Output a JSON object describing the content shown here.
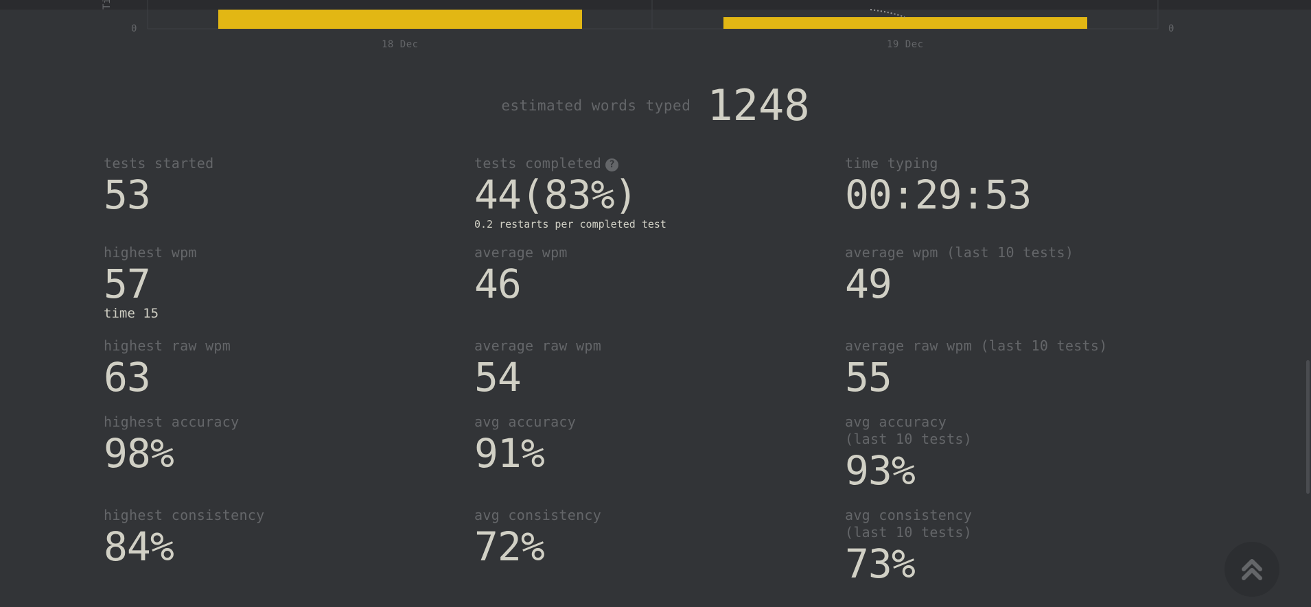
{
  "chart_data": {
    "type": "bar",
    "categories": [
      "18 Dec",
      "19 Dec"
    ],
    "y_tick_left": "0",
    "y_tick_right": "0",
    "ylabel_fragment": "Tin",
    "bar_color": "#e2b714",
    "grid": true
  },
  "words_typed": {
    "label": "estimated words typed",
    "value": "1248"
  },
  "stats": {
    "tests_started": {
      "label": "tests started",
      "value": "53"
    },
    "tests_completed": {
      "label": "tests completed",
      "value": "44(83%)",
      "sub": "0.2 restarts per completed test"
    },
    "time_typing": {
      "label": "time typing",
      "value": "00:29:53"
    },
    "highest_wpm": {
      "label": "highest wpm",
      "value": "57",
      "sub": "time 15"
    },
    "average_wpm": {
      "label": "average wpm",
      "value": "46"
    },
    "average_wpm_last10": {
      "label": "average wpm (last 10 tests)",
      "value": "49"
    },
    "highest_raw_wpm": {
      "label": "highest raw wpm",
      "value": "63"
    },
    "average_raw_wpm": {
      "label": "average raw wpm",
      "value": "54"
    },
    "average_raw_wpm_last10": {
      "label": "average raw wpm (last 10 tests)",
      "value": "55"
    },
    "highest_accuracy": {
      "label": "highest accuracy",
      "value": "98%"
    },
    "avg_accuracy": {
      "label": "avg accuracy",
      "value": "91%"
    },
    "avg_accuracy_last10": {
      "label_line1": "avg accuracy",
      "label_line2": "(last 10 tests)",
      "value": "93%"
    },
    "highest_consistency": {
      "label": "highest consistency",
      "value": "84%"
    },
    "avg_consistency": {
      "label": "avg consistency",
      "value": "72%"
    },
    "avg_consistency_last10": {
      "label_line1": "avg consistency",
      "label_line2": "(last 10 tests)",
      "value": "73%"
    }
  },
  "icons": {
    "help": "question-circle-icon",
    "scroll_top": "double-chevron-up-icon"
  },
  "colors": {
    "background": "#323437",
    "text": "#d1d0c5",
    "subtext": "#646669",
    "accent": "#e2b714"
  }
}
